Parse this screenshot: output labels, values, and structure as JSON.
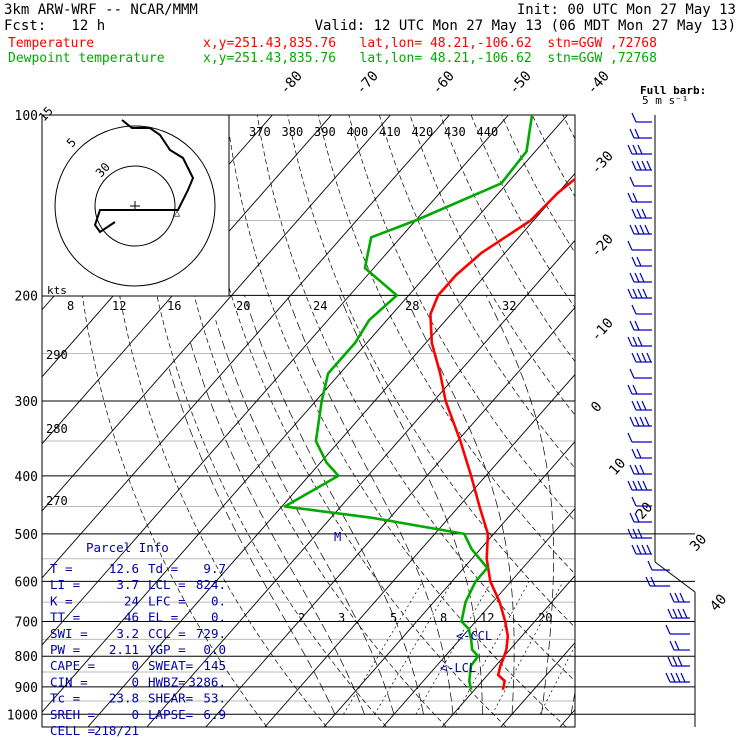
{
  "header": {
    "line1_left": "3km ARW-WRF -- NCAR/MMM",
    "line1_right": "Init: 00 UTC Mon 27 May 13",
    "line2_left": "Fcst:   12 h",
    "line2_right": "Valid: 12 UTC Mon 27 May 13 (06 MDT Mon 27 May 13)",
    "temp_label": "Temperature",
    "temp_info": "x,y=251.43,835.76   lat,lon= 48.21,-106.62  stn=GGW ,72768",
    "dew_label": "Dewpoint temperature",
    "dew_info": "x,y=251.43,835.76   lat,lon= 48.21,-106.62  stn=GGW ,72768"
  },
  "colors": {
    "temperature": "#ff0000",
    "dewpoint": "#00aa00",
    "barbs": "#0000cc",
    "text_blue": "#0000aa"
  },
  "barb_legend": {
    "title": "Full barb:",
    "value": "5 m s⁻¹"
  },
  "hodo_labels": [
    "kts",
    "8",
    "12",
    "16",
    "20",
    "24",
    "28",
    "32"
  ],
  "hodo_ring_labels": [
    "15",
    "5",
    "30"
  ],
  "theta_labels": [
    "370",
    "380",
    "390",
    "400",
    "410",
    "420",
    "430",
    "440"
  ],
  "thetae_labels": [
    "290",
    "280",
    "270"
  ],
  "mixing_labels": [
    "2",
    "3",
    "5",
    "8",
    "12",
    "20"
  ],
  "lcl_labels": [
    "<-CCL",
    "<-LCL"
  ],
  "marker_M": "M",
  "parcel": {
    "title": "Parcel Info",
    "rows": [
      [
        "T  =",
        "12.6",
        "Td =",
        "9.7"
      ],
      [
        "LI =",
        "3.7",
        "LCL =",
        "824."
      ],
      [
        "K  =",
        "24",
        "LFC =",
        "0."
      ],
      [
        "TT =",
        "46",
        "EL  =",
        "0."
      ],
      [
        "SWI =",
        "3.2",
        "CCL =",
        "729."
      ],
      [
        "PW =",
        "2.11",
        "YGP =",
        "0.0"
      ],
      [
        "CAPE =",
        "0",
        "SWEAT=",
        "145"
      ],
      [
        "CIN =",
        "0",
        "HWBZ=",
        "3286."
      ],
      [
        "Tc =",
        "23.8",
        "SHEAR=",
        "53."
      ],
      [
        "SREH =",
        "0",
        "LAPSE=",
        "6.9"
      ],
      [
        "CELL =",
        "218/21",
        "",
        ""
      ]
    ]
  },
  "chart_data": {
    "type": "line",
    "title": "",
    "ylabel": "",
    "xlabel": "",
    "pressure_levels": [
      100,
      200,
      300,
      400,
      500,
      600,
      700,
      800,
      900,
      1000
    ],
    "isotherm_labels": [
      -80,
      -70,
      -60,
      -50,
      -40,
      -30,
      -20,
      -10,
      0,
      10,
      20,
      30,
      40
    ],
    "series": [
      {
        "name": "Temperature",
        "p": [
          910,
          880,
          860,
          830,
          810,
          780,
          740,
          700,
          650,
          600,
          550,
          500,
          450,
          400,
          350,
          300,
          270,
          240,
          215,
          200,
          185,
          170,
          150,
          135,
          115,
          100
        ],
        "t": [
          14.8,
          13.8,
          11.8,
          10.8,
          10.3,
          9.4,
          7.6,
          5.0,
          1.2,
          -3.5,
          -7.5,
          -11.0,
          -16.5,
          -22.5,
          -29.5,
          -38.0,
          -43.0,
          -49.0,
          -53.5,
          -55.0,
          -55.0,
          -54.0,
          -50.5,
          -50.0,
          -47.5,
          -45.5
        ]
      },
      {
        "name": "Dewpoint temperature",
        "p": [
          910,
          880,
          830,
          800,
          780,
          750,
          720,
          700,
          650,
          600,
          570,
          530,
          500,
          470,
          450,
          400,
          380,
          350,
          300,
          270,
          240,
          220,
          200,
          180,
          160,
          150,
          130,
          115,
          100
        ],
        "t": [
          9.4,
          7.8,
          5.8,
          5.6,
          3.6,
          1.9,
          -0.1,
          -2.4,
          -4.6,
          -6.0,
          -6.0,
          -11.5,
          -15.0,
          -33.0,
          -49.5,
          -45.0,
          -49.0,
          -54.0,
          -59.0,
          -62.0,
          -62.0,
          -63.0,
          -62.0,
          -71.5,
          -75.0,
          -70.0,
          -61.0,
          -61.5,
          -66.0
        ]
      }
    ]
  }
}
